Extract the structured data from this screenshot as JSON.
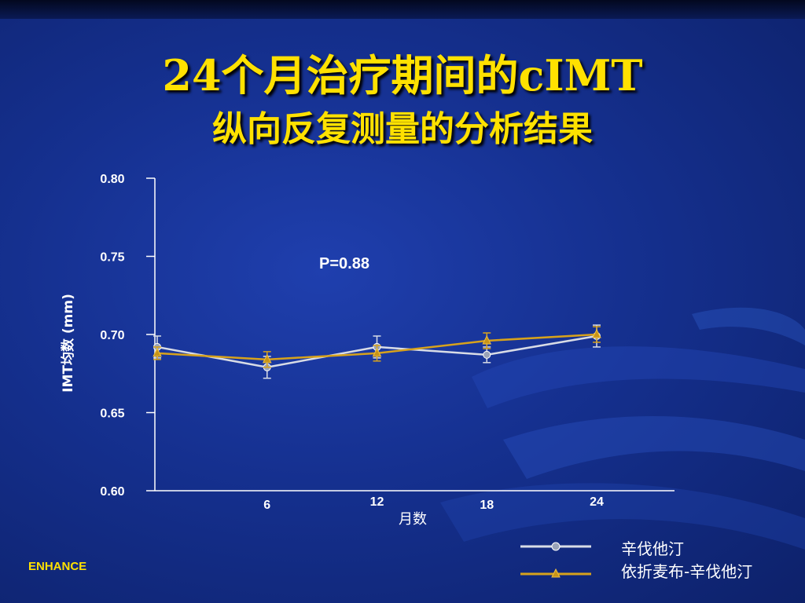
{
  "slide": {
    "title_line1": "24个月治疗期间的cIMT",
    "title_line2": "纵向反复测量的分析结果",
    "brand": "ENHANCE"
  },
  "colors": {
    "background": "#15308f",
    "title": "#ffe100",
    "series_simvastatin": "#d8dce6",
    "series_combo": "#d7a21c"
  },
  "chart_data": {
    "type": "line",
    "ylabel": "IMT均数 (mm)",
    "xlabel": "月数",
    "annotation": "P=0.88",
    "ylim": [
      0.6,
      0.8
    ],
    "yticks": [
      "0.80",
      "0.75",
      "0.70",
      "0.65",
      "0.60"
    ],
    "x": [
      0,
      6,
      12,
      18,
      24
    ],
    "xtick_labels": [
      "6",
      "12",
      "18",
      "24"
    ],
    "series": [
      {
        "name": "辛伐他汀",
        "marker": "circle",
        "color": "#d8dce6",
        "values": [
          0.692,
          0.679,
          0.692,
          0.687,
          0.699
        ],
        "error": [
          0.007,
          0.007,
          0.007,
          0.005,
          0.007
        ]
      },
      {
        "name": "依折麦布-辛伐他汀",
        "marker": "triangle",
        "color": "#d7a21c",
        "values": [
          0.688,
          0.684,
          0.688,
          0.696,
          0.7
        ],
        "error": [
          0.004,
          0.005,
          0.005,
          0.005,
          0.005
        ]
      }
    ]
  }
}
